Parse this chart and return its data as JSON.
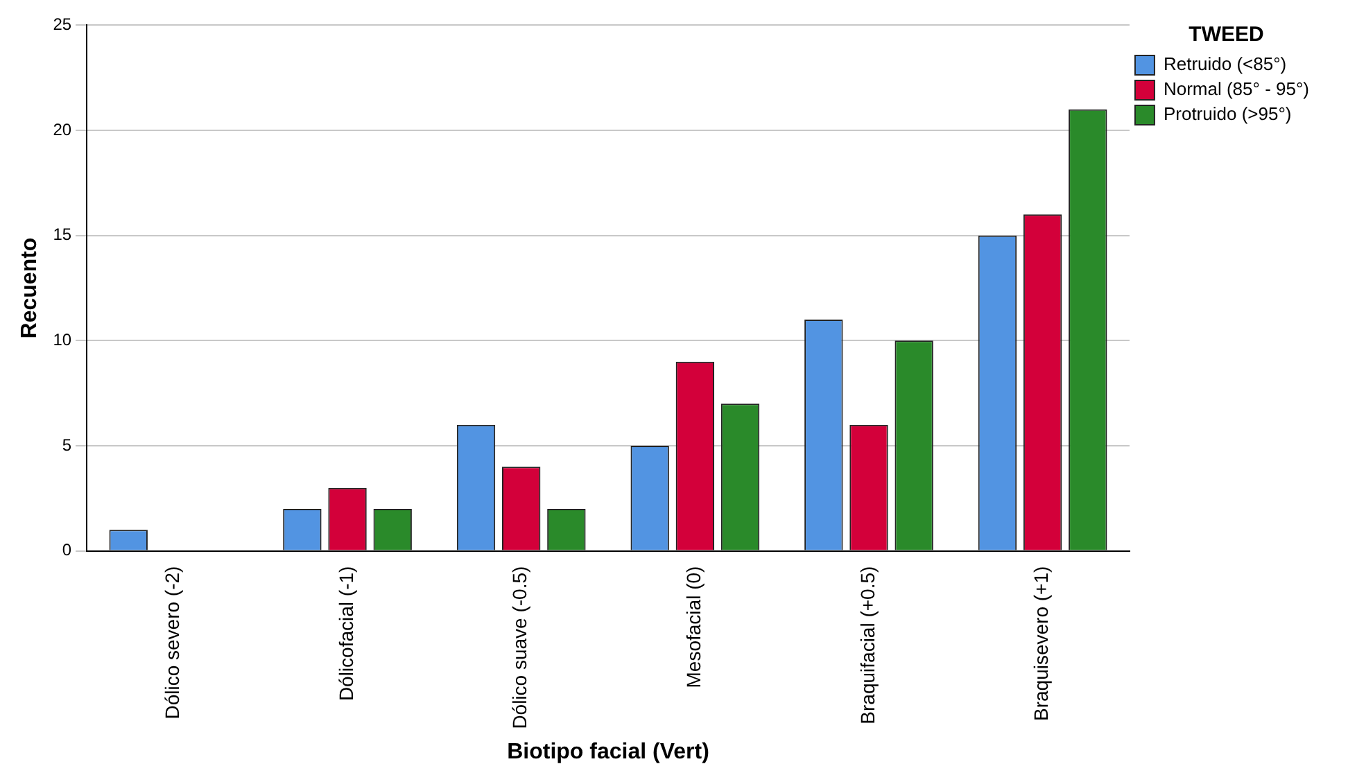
{
  "chart_data": {
    "type": "bar",
    "xlabel": "Biotipo facial (Vert)",
    "ylabel": "Recuento",
    "legend_title": "TWEED",
    "categories": [
      "Dólico severo (-2)",
      "Dólicofacial (-1)",
      "Dólico suave (-0.5)",
      "Mesofacial (0)",
      "Braquifacial (+0.5)",
      "Braquisevero (+1)"
    ],
    "series": [
      {
        "name": "Retruido (<85°)",
        "color": "#5294e2",
        "values": [
          1,
          2,
          6,
          5,
          11,
          15
        ]
      },
      {
        "name": "Normal (85° - 95°)",
        "color": "#d3003a",
        "values": [
          0,
          3,
          4,
          9,
          6,
          16
        ]
      },
      {
        "name": "Protruido (>95°)",
        "color": "#2a8a2a",
        "values": [
          0,
          2,
          2,
          7,
          10,
          21
        ]
      }
    ],
    "ylim": [
      0,
      25
    ],
    "yticks": [
      0,
      5,
      10,
      15,
      20,
      25
    ],
    "grid": "y",
    "legend": "top right"
  }
}
